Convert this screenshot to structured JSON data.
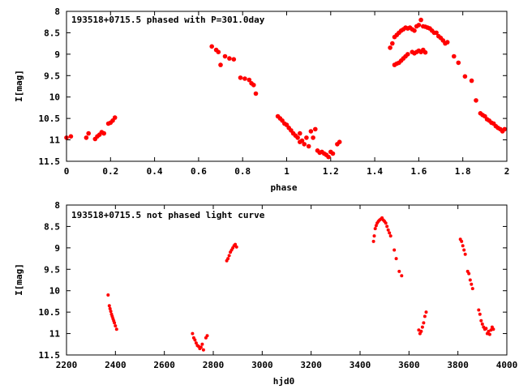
{
  "colors": {
    "points": "#ff0000",
    "frame": "#000000",
    "background": "#ffffff"
  },
  "chart_data": [
    {
      "type": "scatter",
      "title": "193518+0715.5 phased with P=301.0day",
      "xlabel": "phase",
      "ylabel": "I[mag]",
      "xlim": [
        0,
        2
      ],
      "ylim": [
        8,
        11.5
      ],
      "y_inverted": true,
      "grid": false,
      "xticks": [
        0,
        0.2,
        0.4,
        0.6,
        0.8,
        1,
        1.2,
        1.4,
        1.6,
        1.8,
        2
      ],
      "xtick_labels": [
        "0",
        "0.2",
        "0.4",
        "0.6",
        "0.8",
        "1",
        "1.2",
        "1.4",
        "1.6",
        "1.8",
        "2"
      ],
      "yticks": [
        8,
        8.5,
        9,
        9.5,
        10,
        10.5,
        11,
        11.5
      ],
      "ytick_labels": [
        "8",
        "8.5",
        "9",
        "9.5",
        "10",
        "10.5",
        "11",
        "11.5"
      ],
      "series": [
        {
          "points": [
            [
              0.0,
              10.95
            ],
            [
              0.02,
              10.92
            ],
            [
              0.09,
              10.95
            ],
            [
              0.1,
              10.85
            ],
            [
              0.13,
              10.98
            ],
            [
              0.14,
              10.92
            ],
            [
              0.15,
              10.88
            ],
            [
              0.16,
              10.82
            ],
            [
              0.17,
              10.85
            ],
            [
              0.19,
              10.62
            ],
            [
              0.2,
              10.6
            ],
            [
              0.21,
              10.55
            ],
            [
              0.22,
              10.48
            ],
            [
              0.66,
              8.82
            ],
            [
              0.68,
              8.9
            ],
            [
              0.69,
              8.95
            ],
            [
              0.7,
              9.25
            ],
            [
              0.72,
              9.05
            ],
            [
              0.74,
              9.1
            ],
            [
              0.76,
              9.12
            ],
            [
              0.79,
              9.55
            ],
            [
              0.81,
              9.57
            ],
            [
              0.83,
              9.6
            ],
            [
              0.84,
              9.68
            ],
            [
              0.85,
              9.72
            ],
            [
              0.86,
              9.92
            ],
            [
              0.96,
              10.45
            ],
            [
              0.97,
              10.5
            ],
            [
              0.98,
              10.55
            ],
            [
              0.99,
              10.62
            ],
            [
              1.0,
              10.65
            ],
            [
              1.01,
              10.72
            ],
            [
              1.02,
              10.78
            ],
            [
              1.03,
              10.85
            ],
            [
              1.04,
              10.9
            ],
            [
              1.05,
              10.95
            ],
            [
              1.06,
              10.85
            ],
            [
              1.06,
              11.05
            ],
            [
              1.07,
              11.02
            ],
            [
              1.08,
              11.1
            ],
            [
              1.09,
              10.95
            ],
            [
              1.1,
              11.15
            ],
            [
              1.11,
              10.8
            ],
            [
              1.12,
              10.95
            ],
            [
              1.13,
              10.75
            ],
            [
              1.14,
              11.25
            ],
            [
              1.15,
              11.3
            ],
            [
              1.16,
              11.28
            ],
            [
              1.17,
              11.32
            ],
            [
              1.18,
              11.35
            ],
            [
              1.19,
              11.4
            ],
            [
              1.2,
              11.28
            ],
            [
              1.21,
              11.32
            ],
            [
              1.23,
              11.1
            ],
            [
              1.24,
              11.05
            ],
            [
              1.47,
              8.85
            ],
            [
              1.48,
              8.75
            ],
            [
              1.49,
              8.6
            ],
            [
              1.5,
              8.55
            ],
            [
              1.51,
              8.5
            ],
            [
              1.52,
              8.45
            ],
            [
              1.53,
              8.42
            ],
            [
              1.54,
              8.38
            ],
            [
              1.55,
              8.4
            ],
            [
              1.56,
              8.38
            ],
            [
              1.57,
              8.42
            ],
            [
              1.58,
              8.45
            ],
            [
              1.59,
              8.35
            ],
            [
              1.6,
              8.32
            ],
            [
              1.61,
              8.2
            ],
            [
              1.62,
              8.35
            ],
            [
              1.63,
              8.36
            ],
            [
              1.64,
              8.38
            ],
            [
              1.65,
              8.4
            ],
            [
              1.66,
              8.45
            ],
            [
              1.67,
              8.5
            ],
            [
              1.68,
              8.5
            ],
            [
              1.69,
              8.58
            ],
            [
              1.7,
              8.62
            ],
            [
              1.71,
              8.68
            ],
            [
              1.72,
              8.75
            ],
            [
              1.73,
              8.72
            ],
            [
              1.49,
              9.25
            ],
            [
              1.5,
              9.22
            ],
            [
              1.51,
              9.2
            ],
            [
              1.52,
              9.15
            ],
            [
              1.53,
              9.1
            ],
            [
              1.54,
              9.05
            ],
            [
              1.55,
              9.0
            ],
            [
              1.57,
              8.95
            ],
            [
              1.58,
              8.98
            ],
            [
              1.59,
              8.95
            ],
            [
              1.6,
              8.92
            ],
            [
              1.61,
              8.95
            ],
            [
              1.62,
              8.9
            ],
            [
              1.63,
              8.96
            ],
            [
              1.76,
              9.05
            ],
            [
              1.78,
              9.2
            ],
            [
              1.81,
              9.52
            ],
            [
              1.84,
              9.62
            ],
            [
              1.86,
              10.08
            ],
            [
              1.88,
              10.38
            ],
            [
              1.89,
              10.42
            ],
            [
              1.9,
              10.45
            ],
            [
              1.91,
              10.52
            ],
            [
              1.92,
              10.55
            ],
            [
              1.93,
              10.6
            ],
            [
              1.94,
              10.62
            ],
            [
              1.95,
              10.68
            ],
            [
              1.96,
              10.72
            ],
            [
              1.97,
              10.75
            ],
            [
              1.98,
              10.8
            ],
            [
              1.99,
              10.75
            ]
          ]
        }
      ]
    },
    {
      "type": "scatter",
      "title": "193518+0715.5 not phased light curve",
      "xlabel": "hjd0",
      "ylabel": "I[mag]",
      "xlim": [
        2200,
        4000
      ],
      "ylim": [
        8,
        11.5
      ],
      "y_inverted": true,
      "grid": false,
      "xticks": [
        2200,
        2400,
        2600,
        2800,
        3000,
        3200,
        3400,
        3600,
        3800,
        4000
      ],
      "xtick_labels": [
        "2200",
        "2400",
        "2600",
        "2800",
        "3000",
        "3200",
        "3400",
        "3600",
        "3800",
        "4000"
      ],
      "yticks": [
        8,
        8.5,
        9,
        9.5,
        10,
        10.5,
        11,
        11.5
      ],
      "ytick_labels": [
        "8",
        "8.5",
        "9",
        "9.5",
        "10",
        "10.5",
        "11",
        "11.5"
      ],
      "series": [
        {
          "points": [
            [
              2370,
              10.1
            ],
            [
              2375,
              10.35
            ],
            [
              2378,
              10.42
            ],
            [
              2381,
              10.48
            ],
            [
              2384,
              10.55
            ],
            [
              2387,
              10.6
            ],
            [
              2390,
              10.65
            ],
            [
              2393,
              10.7
            ],
            [
              2396,
              10.75
            ],
            [
              2400,
              10.82
            ],
            [
              2405,
              10.9
            ],
            [
              2715,
              11.0
            ],
            [
              2720,
              11.1
            ],
            [
              2725,
              11.15
            ],
            [
              2730,
              11.22
            ],
            [
              2735,
              11.28
            ],
            [
              2740,
              11.3
            ],
            [
              2745,
              11.35
            ],
            [
              2750,
              11.32
            ],
            [
              2755,
              11.25
            ],
            [
              2760,
              11.38
            ],
            [
              2770,
              11.1
            ],
            [
              2775,
              11.05
            ],
            [
              2855,
              9.3
            ],
            [
              2860,
              9.25
            ],
            [
              2865,
              9.18
            ],
            [
              2870,
              9.1
            ],
            [
              2875,
              9.05
            ],
            [
              2880,
              9.0
            ],
            [
              2885,
              8.95
            ],
            [
              2890,
              8.92
            ],
            [
              2895,
              8.98
            ],
            [
              3455,
              8.85
            ],
            [
              3458,
              8.72
            ],
            [
              3462,
              8.55
            ],
            [
              3466,
              8.48
            ],
            [
              3470,
              8.42
            ],
            [
              3475,
              8.38
            ],
            [
              3480,
              8.35
            ],
            [
              3485,
              8.33
            ],
            [
              3490,
              8.3
            ],
            [
              3495,
              8.35
            ],
            [
              3500,
              8.38
            ],
            [
              3505,
              8.42
            ],
            [
              3510,
              8.5
            ],
            [
              3515,
              8.58
            ],
            [
              3520,
              8.65
            ],
            [
              3525,
              8.72
            ],
            [
              3540,
              9.05
            ],
            [
              3548,
              9.25
            ],
            [
              3560,
              9.55
            ],
            [
              3570,
              9.65
            ],
            [
              3640,
              10.92
            ],
            [
              3645,
              11.0
            ],
            [
              3650,
              10.95
            ],
            [
              3655,
              10.85
            ],
            [
              3660,
              10.75
            ],
            [
              3665,
              10.6
            ],
            [
              3670,
              10.5
            ],
            [
              3810,
              8.8
            ],
            [
              3815,
              8.85
            ],
            [
              3820,
              8.95
            ],
            [
              3825,
              9.05
            ],
            [
              3830,
              9.15
            ],
            [
              3840,
              9.55
            ],
            [
              3845,
              9.6
            ],
            [
              3850,
              9.75
            ],
            [
              3855,
              9.85
            ],
            [
              3860,
              9.95
            ],
            [
              3885,
              10.45
            ],
            [
              3890,
              10.55
            ],
            [
              3895,
              10.7
            ],
            [
              3900,
              10.78
            ],
            [
              3905,
              10.85
            ],
            [
              3910,
              10.9
            ],
            [
              3915,
              10.88
            ],
            [
              3920,
              11.0
            ],
            [
              3925,
              10.95
            ],
            [
              3930,
              11.02
            ],
            [
              3935,
              10.92
            ],
            [
              3940,
              10.85
            ],
            [
              3945,
              10.9
            ]
          ]
        }
      ]
    }
  ]
}
